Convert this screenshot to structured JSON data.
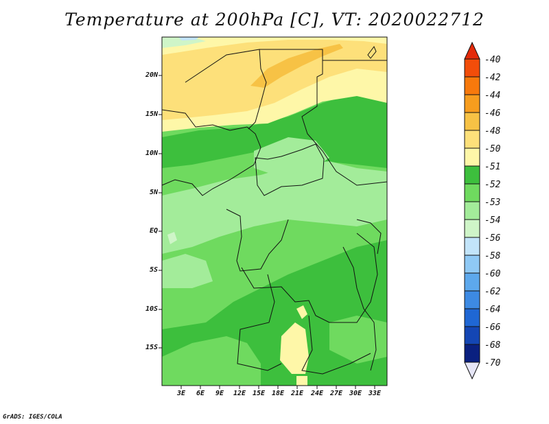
{
  "title": "Temperature at 200hPa [C], VT: 2020022712",
  "credit": "GrADS: IGES/COLA",
  "axes": {
    "y_ticks": [
      "20N",
      "15N",
      "10N",
      "5N",
      "EQ",
      "5S",
      "10S",
      "15S"
    ],
    "x_ticks": [
      "3E",
      "6E",
      "9E",
      "12E",
      "15E",
      "18E",
      "21E",
      "24E",
      "27E",
      "30E",
      "33E"
    ]
  },
  "colorbar": {
    "labels": [
      "-40",
      "-42",
      "-44",
      "-46",
      "-48",
      "-50",
      "-51",
      "-52",
      "-53",
      "-54",
      "-56",
      "-58",
      "-60",
      "-62",
      "-64",
      "-66",
      "-68",
      "-70"
    ],
    "colors": [
      "#e32a0a",
      "#f24d0a",
      "#f7790c",
      "#f79d1e",
      "#f7c245",
      "#fde07a",
      "#fef7a8",
      "#3dbf3d",
      "#6fda5f",
      "#a3ec9a",
      "#cff5c8",
      "#c2e4fa",
      "#8fc9f5",
      "#5da8ec",
      "#3d8ae3",
      "#1f67d4",
      "#1446b4",
      "#0a2080",
      "#e6e6f7"
    ]
  },
  "map_colors": {
    "c50": "#fef7a8",
    "c48": "#fde07a",
    "c46": "#f7c245",
    "c52": "#3dbf3d",
    "c53": "#6fda5f",
    "c54": "#a3ec9a",
    "c56": "#cff5c8",
    "c58": "#c2e4fa"
  }
}
